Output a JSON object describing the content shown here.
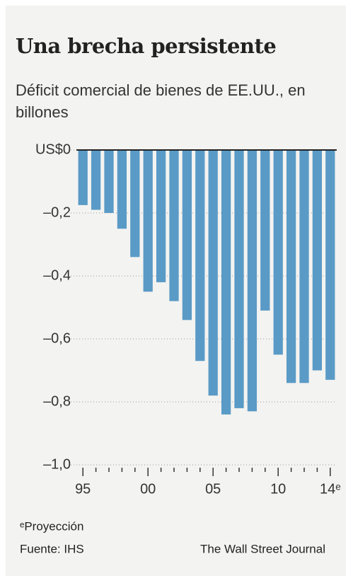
{
  "chart_data": {
    "type": "bar",
    "title": "Una brecha persistente",
    "subtitle": "Déficit comercial de bienes de EE.UU., en billones",
    "categories": [
      "95",
      null,
      null,
      null,
      null,
      "00",
      null,
      null,
      null,
      null,
      "05",
      null,
      null,
      null,
      null,
      "10",
      null,
      null,
      null,
      "14ᵉ"
    ],
    "values": [
      -0.175,
      -0.19,
      -0.2,
      -0.25,
      -0.34,
      -0.45,
      -0.42,
      -0.48,
      -0.54,
      -0.67,
      -0.78,
      -0.84,
      -0.82,
      -0.83,
      -0.51,
      -0.65,
      -0.74,
      -0.74,
      -0.7,
      -0.73
    ],
    "color": "#5a9ac6",
    "ylim": [
      -1.0,
      0
    ],
    "yticks": [
      {
        "value": 0,
        "label": "US$0"
      },
      {
        "value": -0.2,
        "label": "–0,2"
      },
      {
        "value": -0.4,
        "label": "–0,4"
      },
      {
        "value": -0.6,
        "label": "–0,6"
      },
      {
        "value": -0.8,
        "label": "–0,8"
      },
      {
        "value": -1.0,
        "label": "–1,0"
      }
    ],
    "grid": true,
    "note": "ᵉProyección",
    "source": "Fuente: IHS",
    "credit": "The Wall Street Journal"
  }
}
